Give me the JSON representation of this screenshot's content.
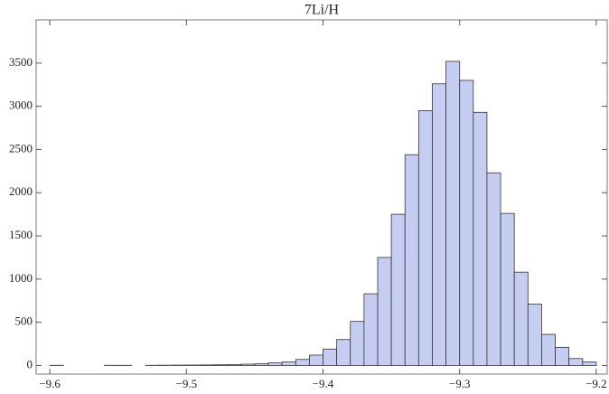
{
  "chart_data": {
    "type": "histogram",
    "title": "7Li/H",
    "bins": [
      -9.6,
      -9.59,
      -9.58,
      -9.57,
      -9.56,
      -9.55,
      -9.54,
      -9.53,
      -9.52,
      -9.51,
      -9.5,
      -9.49,
      -9.48,
      -9.47,
      -9.46,
      -9.45,
      -9.44,
      -9.43,
      -9.42,
      -9.41,
      -9.4,
      -9.39,
      -9.38,
      -9.37,
      -9.36,
      -9.35,
      -9.34,
      -9.33,
      -9.32,
      -9.31,
      -9.3,
      -9.29,
      -9.28,
      -9.27,
      -9.26,
      -9.25,
      -9.24,
      -9.23,
      -9.22,
      -9.21,
      -9.2
    ],
    "values": [
      2,
      0,
      0,
      0,
      2,
      2,
      0,
      2,
      3,
      4,
      5,
      6,
      8,
      10,
      15,
      20,
      30,
      40,
      70,
      120,
      190,
      300,
      510,
      830,
      1250,
      1750,
      2440,
      2950,
      3260,
      3520,
      3300,
      2930,
      2230,
      1760,
      1080,
      710,
      360,
      210,
      80,
      40
    ],
    "color": "#c6cdf2",
    "xlim": [
      -9.61,
      -9.192
    ],
    "xticks": [
      {
        "value": -9.6,
        "label": "−9.6"
      },
      {
        "value": -9.5,
        "label": "−9.5"
      },
      {
        "value": -9.4,
        "label": "−9.4"
      },
      {
        "value": -9.3,
        "label": "−9.3"
      },
      {
        "value": -9.2,
        "label": "−9.2"
      }
    ],
    "ylim": [
      -100,
      4000
    ],
    "yticks": [
      0,
      500,
      1000,
      1500,
      2000,
      2500,
      3000,
      3500
    ]
  }
}
